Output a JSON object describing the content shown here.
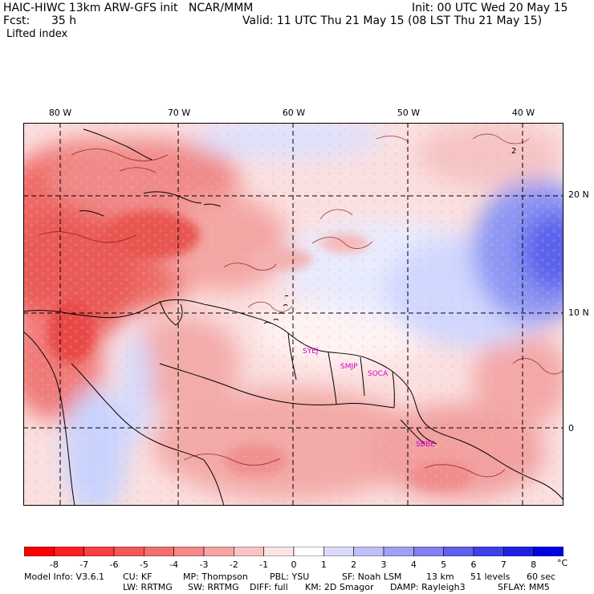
{
  "header": {
    "title_left": "HAIC-HIWC 13km ARW-GFS init   NCAR/MMM",
    "init": "Init: 00 UTC Wed 20 May 15",
    "fcst_label": "Fcst:",
    "fcst_value": "35 h",
    "valid": "Valid: 11 UTC Thu 21 May 15 (08 LST Thu 21 May 15)",
    "field": "Lifted index"
  },
  "map": {
    "lon_labels": [
      "80 W",
      "70 W",
      "60 W",
      "50 W",
      "40 W"
    ],
    "lat_labels": [
      "20 N",
      "10 N",
      "0"
    ],
    "contour_label": "2",
    "stations": [
      "SYEJ",
      "SMJP",
      "SOCA",
      "SBBE"
    ],
    "colors": {
      "strong_neg": "#e8302e",
      "mid_neg": "#f08080",
      "weak_neg": "#fac0c0",
      "neutral": "#fff0f0",
      "weak_pos": "#d0d8ff",
      "strong_pos": "#3a3ae8"
    }
  },
  "colorbar": {
    "labels": [
      "-8",
      "-7",
      "-6",
      "-5",
      "-4",
      "-3",
      "-2",
      "-1",
      "0",
      "1",
      "2",
      "3",
      "4",
      "5",
      "6",
      "7",
      "8"
    ],
    "unit": "°C",
    "colors": [
      "#ff0000",
      "#ff2020",
      "#f84040",
      "#f45858",
      "#f27070",
      "#f48888",
      "#f6a4a4",
      "#f9c4c4",
      "#fde4e4",
      "#ffffff",
      "#dcdcfa",
      "#c0c0f8",
      "#a0a0f4",
      "#8080f0",
      "#6060ec",
      "#4040e8",
      "#2020e4",
      "#0000e0"
    ]
  },
  "footer": {
    "line1": [
      "Model Info: V3.6.1",
      "CU: KF",
      "MP: Thompson",
      "PBL: YSU",
      "SF: Noah LSM",
      "13 km",
      "51 levels",
      "60 sec"
    ],
    "line2": [
      "LW: RRTMG",
      "SW: RRTMG",
      "DIFF: full",
      "KM: 2D Smagor",
      "DAMP: Rayleigh3",
      "SFLAY: MM5"
    ]
  }
}
